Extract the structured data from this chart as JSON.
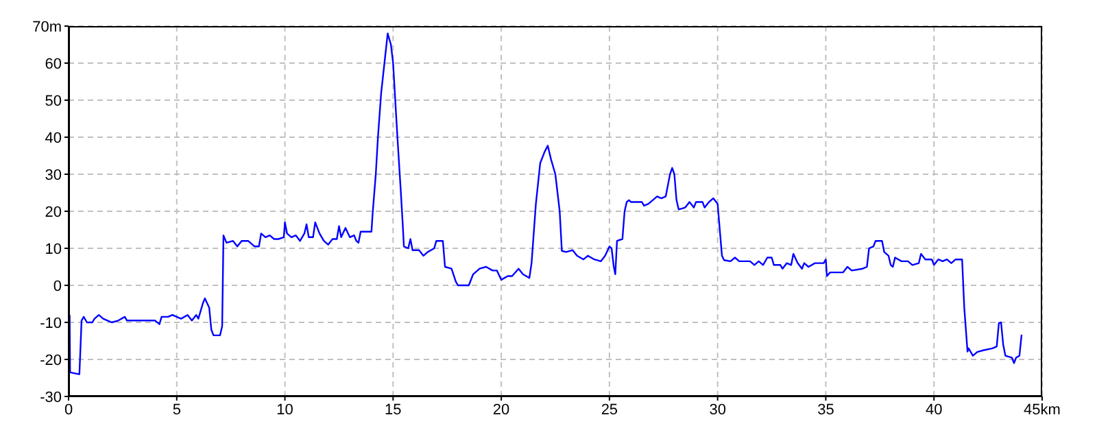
{
  "chart_data": {
    "type": "line",
    "color": "#0000ff",
    "grid": true,
    "marker": "none",
    "line_style": "solid",
    "xlim": [
      0,
      45
    ],
    "xticks": [
      0,
      5,
      10,
      15,
      20,
      25,
      30,
      35,
      40,
      {
        "value": 45,
        "label": "45km"
      }
    ],
    "ylim": [
      -30,
      70
    ],
    "yticks": [
      -30,
      -20,
      -10,
      0,
      10,
      20,
      30,
      40,
      50,
      60,
      {
        "value": 70,
        "label": "70m"
      }
    ],
    "x": [
      0.05,
      0.07,
      0.5,
      0.55,
      0.6,
      0.7,
      0.85,
      1.1,
      1.2,
      1.4,
      1.6,
      1.8,
      2.0,
      2.3,
      2.6,
      2.7,
      4.0,
      4.2,
      4.3,
      4.6,
      4.8,
      5.2,
      5.5,
      5.7,
      5.9,
      6.0,
      6.2,
      6.3,
      6.5,
      6.6,
      6.7,
      7.0,
      7.1,
      7.16,
      7.3,
      7.6,
      7.8,
      8.0,
      8.3,
      8.5,
      8.6,
      8.8,
      8.9,
      9.1,
      9.3,
      9.5,
      9.7,
      9.95,
      10.0,
      10.1,
      10.3,
      10.5,
      10.7,
      10.9,
      11.0,
      11.1,
      11.3,
      11.4,
      11.6,
      11.8,
      12.0,
      12.2,
      12.4,
      12.5,
      12.6,
      12.8,
      13.0,
      13.2,
      13.3,
      13.4,
      13.5,
      14.0,
      14.05,
      14.2,
      14.3,
      14.45,
      14.6,
      14.75,
      14.9,
      15.0,
      15.1,
      15.2,
      15.35,
      15.45,
      15.5,
      15.7,
      15.8,
      15.9,
      16.2,
      16.4,
      16.6,
      16.9,
      17.0,
      17.3,
      17.4,
      17.7,
      17.9,
      18.0,
      18.5,
      18.7,
      19.0,
      19.3,
      19.6,
      19.8,
      20.0,
      20.3,
      20.5,
      20.8,
      21.0,
      21.3,
      21.4,
      21.6,
      21.8,
      22.0,
      22.15,
      22.3,
      22.5,
      22.7,
      22.8,
      23.0,
      23.3,
      23.5,
      23.8,
      24.0,
      24.3,
      24.6,
      24.8,
      25.0,
      25.1,
      25.2,
      25.27,
      25.35,
      25.6,
      25.7,
      25.8,
      25.9,
      26.0,
      26.5,
      26.6,
      26.8,
      27.0,
      27.2,
      27.4,
      27.6,
      27.8,
      27.9,
      28.0,
      28.1,
      28.2,
      28.5,
      28.7,
      28.9,
      29.0,
      29.3,
      29.4,
      29.6,
      29.8,
      30.0,
      30.1,
      30.2,
      30.3,
      30.6,
      30.8,
      31.0,
      31.5,
      31.7,
      31.9,
      32.1,
      32.3,
      32.5,
      32.6,
      32.9,
      33.0,
      33.2,
      33.4,
      33.5,
      33.7,
      33.9,
      34.0,
      34.2,
      34.5,
      34.9,
      35.0,
      35.05,
      35.2,
      35.5,
      35.8,
      36.0,
      36.2,
      36.7,
      36.9,
      37.0,
      37.2,
      37.3,
      37.6,
      37.7,
      37.9,
      38.0,
      38.1,
      38.2,
      38.5,
      38.8,
      39.0,
      39.3,
      39.4,
      39.6,
      39.9,
      40.0,
      40.2,
      40.4,
      40.6,
      40.8,
      41.0,
      41.3,
      41.4,
      41.55,
      41.6,
      41.8,
      42.0,
      42.3,
      42.7,
      42.9,
      43.0,
      43.1,
      43.2,
      43.3,
      43.6,
      43.7,
      43.8,
      43.95,
      44.05
    ],
    "values": [
      -8,
      -23.5,
      -24,
      -17,
      -9.5,
      -8.5,
      -10,
      -10,
      -9,
      -8,
      -9,
      -9.5,
      -10,
      -9.5,
      -8.5,
      -9.5,
      -9.5,
      -10.5,
      -8.5,
      -8.5,
      -8,
      -9,
      -8,
      -9.5,
      -8,
      -9,
      -5,
      -3.5,
      -6,
      -12,
      -13.5,
      -13.5,
      -11,
      13.5,
      11.5,
      12,
      10.5,
      12,
      12,
      11,
      10.5,
      10.5,
      14,
      13,
      13.5,
      12.5,
      12.5,
      13,
      17,
      14,
      13,
      13.5,
      12,
      14,
      16.5,
      13,
      13,
      17,
      14,
      12,
      11,
      12.5,
      12.5,
      16,
      13,
      15.5,
      13,
      13.5,
      12,
      11.5,
      14.5,
      14.5,
      19,
      30,
      40,
      52,
      60,
      68,
      65,
      60,
      50,
      40,
      26,
      16,
      10.5,
      10,
      12.5,
      9.5,
      9.5,
      8,
      9,
      10,
      12,
      12,
      5,
      4.5,
      1,
      0,
      0,
      3,
      4.5,
      5,
      4,
      4,
      1.5,
      2.5,
      2.5,
      4.5,
      3,
      2,
      6,
      22,
      33,
      36,
      37.7,
      34,
      30,
      20,
      9.3,
      9,
      9.5,
      8,
      7,
      8,
      7,
      6.5,
      8,
      10.5,
      10,
      5,
      3,
      12,
      12.5,
      20,
      22.5,
      23,
      22.5,
      22.5,
      21.5,
      22,
      23,
      24,
      23.5,
      24,
      30,
      31.7,
      30,
      23,
      20.5,
      21,
      22.5,
      21,
      22.5,
      22.5,
      21,
      22.5,
      23.5,
      22,
      15,
      8,
      6.8,
      6.5,
      7.5,
      6.5,
      6.5,
      5.5,
      6.5,
      5.5,
      7.5,
      7.5,
      5.5,
      5.5,
      4.5,
      6,
      5.5,
      8.5,
      6,
      4.5,
      6,
      5,
      6,
      6,
      7,
      2.5,
      3.5,
      3.5,
      3.5,
      5,
      4,
      4.5,
      5,
      10,
      10.5,
      12,
      12,
      9,
      8,
      5.5,
      5,
      7.5,
      6.5,
      6.5,
      5.5,
      6,
      8.5,
      7,
      7,
      5.5,
      7,
      6.5,
      7,
      6,
      7,
      7,
      -6,
      -17.9,
      -17,
      -19,
      -18,
      -17.5,
      -17,
      -16.5,
      -10.2,
      -10,
      -16,
      -19,
      -19.5,
      -21,
      -19.5,
      -19,
      -13.3
    ]
  }
}
